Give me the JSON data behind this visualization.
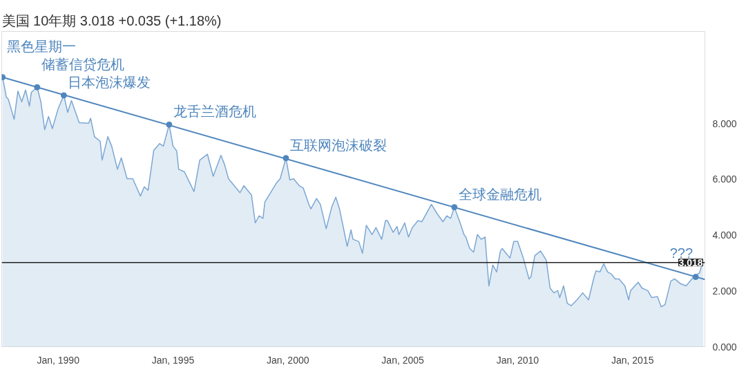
{
  "chart_data": {
    "type": "area",
    "title": "美国 10年期 3.018 +0.035 (+1.18%)",
    "xlim": [
      "1987-07-19",
      "2018-02-25"
    ],
    "ylim": [
      0,
      11.3
    ],
    "xticks": [
      {
        "value": "1990-01",
        "label": "Jan, 1990"
      },
      {
        "value": "1995-01",
        "label": "Jan, 1995"
      },
      {
        "value": "2000-01",
        "label": "Jan, 2000"
      },
      {
        "value": "2005-01",
        "label": "Jan, 2005"
      },
      {
        "value": "2010-01",
        "label": "Jan, 2010"
      },
      {
        "value": "2015-01",
        "label": "Jan, 2015"
      }
    ],
    "yticks": [
      {
        "value": 0,
        "label": "0.000"
      },
      {
        "value": 2,
        "label": "2.000"
      },
      {
        "value": 4,
        "label": "4.000"
      },
      {
        "value": 6,
        "label": "6.000"
      },
      {
        "value": 8,
        "label": "8.000"
      }
    ],
    "grid": false,
    "series": [
      {
        "color": "#7ba7d3",
        "x": [
          "1987-08",
          "1987-10",
          "1987-11",
          "1988-02",
          "1988-04",
          "1988-06",
          "1988-08",
          "1988-10",
          "1988-11",
          "1989-02",
          "1989-04",
          "1989-06",
          "1989-08",
          "1989-10",
          "1990-01",
          "1990-04",
          "1990-06",
          "1990-08",
          "1990-12",
          "1991-05",
          "1991-06",
          "1991-08",
          "1991-11",
          "1991-12",
          "1992-03",
          "1992-05",
          "1992-08",
          "1992-10",
          "1993-01",
          "1993-04",
          "1993-08",
          "1993-10",
          "1993-12",
          "1994-03",
          "1994-06",
          "1994-08",
          "1994-11",
          "1995-01",
          "1995-03",
          "1995-04",
          "1995-07",
          "1995-12",
          "1996-03",
          "1996-07",
          "1996-10",
          "1997-02",
          "1997-04",
          "1997-06",
          "1997-12",
          "1998-02",
          "1998-06",
          "1998-08",
          "1998-10",
          "1998-12",
          "1999-01",
          "1999-07",
          "1999-09",
          "1999-12",
          "2000-02",
          "2000-04",
          "2000-07",
          "2000-09",
          "2000-12",
          "2001-01",
          "2001-04",
          "2001-06",
          "2001-09",
          "2001-12",
          "2002-02",
          "2002-04",
          "2002-08",
          "2002-10",
          "2002-11",
          "2003-02",
          "2003-04",
          "2003-06",
          "2003-09",
          "2003-11",
          "2004-02",
          "2004-04",
          "2004-05",
          "2004-08",
          "2004-10",
          "2004-11",
          "2005-02",
          "2005-04",
          "2005-06",
          "2005-09",
          "2005-11",
          "2006-04",
          "2006-07",
          "2006-10",
          "2006-12",
          "2007-02",
          "2007-04",
          "2007-07",
          "2007-09",
          "2007-10",
          "2007-12",
          "2008-02",
          "2008-04",
          "2008-06",
          "2008-08",
          "2008-10",
          "2008-12",
          "2009-02",
          "2009-04",
          "2009-05",
          "2009-09",
          "2009-11",
          "2010-01",
          "2010-04",
          "2010-07",
          "2010-08",
          "2010-10",
          "2011-01",
          "2011-04",
          "2011-06",
          "2011-08",
          "2011-10",
          "2011-11",
          "2012-01",
          "2012-03",
          "2012-05",
          "2012-08",
          "2012-11",
          "2013-02",
          "2013-05",
          "2013-06",
          "2013-08",
          "2013-10",
          "2013-12",
          "2014-02",
          "2014-04",
          "2014-06",
          "2014-09",
          "2014-11",
          "2014-12",
          "2015-04",
          "2015-06",
          "2015-09",
          "2015-11",
          "2016-02",
          "2016-04",
          "2016-06",
          "2016-09",
          "2016-11",
          "2017-02",
          "2017-05",
          "2017-06",
          "2017-09",
          "2017-12",
          "2018-01",
          "2018-02"
        ],
        "values": [
          9.66,
          8.95,
          8.87,
          8.15,
          9.16,
          8.78,
          9.2,
          8.62,
          9.12,
          9.3,
          8.78,
          7.78,
          8.25,
          7.82,
          8.53,
          9.01,
          8.4,
          8.82,
          8.03,
          8.01,
          8.19,
          7.53,
          7.36,
          6.69,
          7.53,
          7.19,
          6.36,
          6.77,
          6.02,
          6.02,
          5.4,
          5.73,
          5.61,
          7.04,
          7.28,
          7.19,
          7.96,
          7.19,
          7.02,
          6.36,
          6.27,
          5.56,
          6.69,
          6.9,
          6.11,
          6.86,
          6.52,
          6.02,
          5.52,
          5.77,
          5.44,
          4.44,
          4.69,
          4.6,
          5.19,
          5.86,
          6.02,
          6.76,
          5.98,
          6.02,
          5.77,
          5.69,
          5.1,
          4.94,
          5.31,
          5.1,
          4.23,
          5.02,
          5.36,
          4.94,
          3.6,
          4.19,
          3.85,
          3.77,
          3.35,
          4.35,
          4.02,
          4.27,
          3.85,
          4.52,
          4.52,
          4.1,
          4.31,
          4.02,
          4.44,
          3.93,
          4.27,
          4.52,
          4.48,
          5.1,
          4.77,
          4.48,
          4.69,
          4.6,
          5.0,
          4.44,
          4.02,
          3.93,
          3.52,
          3.39,
          4.02,
          3.85,
          3.93,
          2.18,
          2.93,
          2.68,
          3.43,
          3.52,
          3.18,
          3.77,
          3.77,
          3.18,
          2.43,
          2.51,
          3.27,
          3.43,
          3.1,
          2.1,
          1.93,
          2.01,
          1.76,
          2.18,
          1.55,
          1.47,
          1.68,
          1.93,
          1.68,
          2.51,
          2.72,
          2.68,
          2.97,
          2.68,
          2.6,
          2.43,
          2.43,
          2.18,
          1.68,
          2.01,
          2.31,
          2.1,
          2.01,
          1.76,
          1.8,
          1.43,
          1.51,
          2.35,
          2.43,
          2.26,
          2.18,
          2.26,
          2.51,
          2.64,
          2.89,
          3.02
        ]
      },
      {
        "type": "line",
        "color": "#4f86bd",
        "x": [
          "1987-08",
          "2018-02-25"
        ],
        "values": [
          9.66,
          2.41
        ]
      },
      {
        "type": "scatter",
        "color": "#4f86bd",
        "marker": "circle",
        "x": [
          "1987-08",
          "1989-02",
          "1990-04",
          "1994-11",
          "1999-12",
          "2007-04",
          "2017-10"
        ],
        "values": [
          9.66,
          9.3,
          9.01,
          7.96,
          6.76,
          5.0,
          2.5
        ]
      }
    ],
    "ref_lines": [
      {
        "axis": "y",
        "value": 3.018,
        "label": "3.018",
        "color": "#222222"
      }
    ],
    "annotations": [
      {
        "text": "黑色星期一",
        "x": "1987-08",
        "y": 9.66
      },
      {
        "text": "储蓄信贷危机",
        "x": "1989-02",
        "y": 9.3
      },
      {
        "text": "日本泡沫爆发",
        "x": "1990-04",
        "y": 9.01
      },
      {
        "text": "龙舌兰酒危机",
        "x": "1994-11",
        "y": 7.96
      },
      {
        "text": "互联网泡沫破裂",
        "x": "1999-12",
        "y": 6.76
      },
      {
        "text": "全球金融危机",
        "x": "2007-04",
        "y": 5.0
      },
      {
        "text": "???",
        "x": "2017-10",
        "y": 2.5
      }
    ]
  }
}
